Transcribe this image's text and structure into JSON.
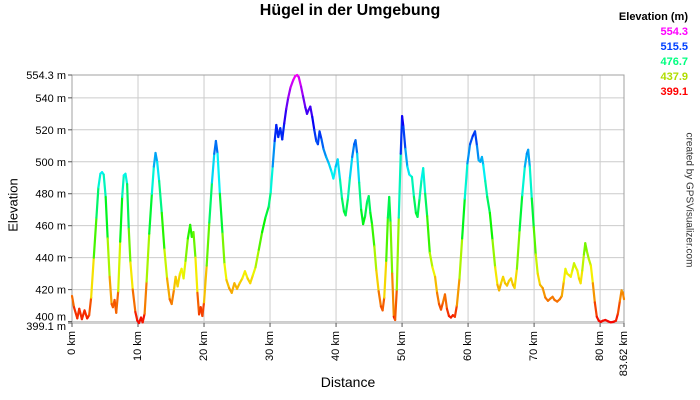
{
  "title": "Hügel in der Umgebung",
  "watermark": "created by GPSVisualizer.com",
  "legend": {
    "title": "Elevation (m)",
    "entries": [
      {
        "label": "554.3",
        "color": "#ff00ff"
      },
      {
        "label": "515.5",
        "color": "#0040ff"
      },
      {
        "label": "476.7",
        "color": "#00ff80"
      },
      {
        "label": "437.9",
        "color": "#b0dd00"
      },
      {
        "label": "399.1",
        "color": "#ff0000"
      }
    ]
  },
  "chart_data": {
    "type": "line",
    "title": "Hügel in der Umgebung",
    "xlabel": "Distance",
    "ylabel": "Elevation",
    "x_unit": "km",
    "y_unit": "m",
    "xlim": [
      0,
      83.62
    ],
    "ylim": [
      399.1,
      554.3
    ],
    "grid": true,
    "grid_color": "#cccccc",
    "border_color": "#a0a0a0",
    "tick_color": "#555555",
    "x_ticks": [
      {
        "value": 0,
        "label": "0 km"
      },
      {
        "value": 10,
        "label": "10 km"
      },
      {
        "value": 20,
        "label": "20 km"
      },
      {
        "value": 30,
        "label": "30 km"
      },
      {
        "value": 40,
        "label": "40 km"
      },
      {
        "value": 50,
        "label": "50 km"
      },
      {
        "value": 60,
        "label": "60 km"
      },
      {
        "value": 70,
        "label": "70 km"
      },
      {
        "value": 80,
        "label": "80 km"
      },
      {
        "value": 83.62,
        "label": "83.62 km"
      }
    ],
    "y_ticks": [
      {
        "value": 554.3,
        "label": "554.3 m"
      },
      {
        "value": 540,
        "label": "540 m"
      },
      {
        "value": 520,
        "label": "520 m"
      },
      {
        "value": 500,
        "label": "500 m"
      },
      {
        "value": 480,
        "label": "480 m"
      },
      {
        "value": 460,
        "label": "460 m"
      },
      {
        "value": 440,
        "label": "440 m"
      },
      {
        "value": 420,
        "label": "420 m"
      },
      {
        "value": 400,
        "label": "400 m"
      },
      {
        "value": 399.1,
        "label": "399.1 m"
      }
    ],
    "color_scale": {
      "type": "rainbow-by-elevation",
      "min_value": 399.1,
      "max_value": 554.3,
      "hue_min": 0,
      "hue_max": 300
    },
    "series": [
      {
        "name": "elevation-profile",
        "points": [
          [
            0,
            416
          ],
          [
            0.3,
            409
          ],
          [
            0.8,
            402
          ],
          [
            1.1,
            408
          ],
          [
            1.5,
            401.5
          ],
          [
            1.9,
            407
          ],
          [
            2.3,
            402
          ],
          [
            2.6,
            404
          ],
          [
            2.9,
            415
          ],
          [
            3.3,
            440
          ],
          [
            3.7,
            465
          ],
          [
            4.0,
            484
          ],
          [
            4.3,
            492.5
          ],
          [
            4.55,
            493.5
          ],
          [
            4.8,
            492
          ],
          [
            5.1,
            478
          ],
          [
            5.4,
            452
          ],
          [
            5.7,
            428
          ],
          [
            6.0,
            411
          ],
          [
            6.2,
            409
          ],
          [
            6.45,
            413.5
          ],
          [
            6.7,
            405.5
          ],
          [
            7.0,
            419
          ],
          [
            7.3,
            450
          ],
          [
            7.6,
            478
          ],
          [
            7.85,
            491.5
          ],
          [
            8.1,
            492.5
          ],
          [
            8.35,
            486
          ],
          [
            8.6,
            458
          ],
          [
            8.85,
            437
          ],
          [
            9.2,
            420
          ],
          [
            9.6,
            406
          ],
          [
            9.9,
            400.5
          ],
          [
            10.15,
            399.1
          ],
          [
            10.45,
            402.5
          ],
          [
            10.7,
            399.5
          ],
          [
            11.0,
            405
          ],
          [
            11.3,
            425
          ],
          [
            11.7,
            455
          ],
          [
            12.1,
            480
          ],
          [
            12.4,
            497
          ],
          [
            12.65,
            505.5
          ],
          [
            12.9,
            500
          ],
          [
            13.2,
            488
          ],
          [
            13.6,
            468
          ],
          [
            14.0,
            445
          ],
          [
            14.4,
            427
          ],
          [
            14.8,
            414
          ],
          [
            15.1,
            411
          ],
          [
            15.45,
            420
          ],
          [
            15.7,
            428
          ],
          [
            16.0,
            422
          ],
          [
            16.35,
            430
          ],
          [
            16.6,
            433
          ],
          [
            16.9,
            427
          ],
          [
            17.2,
            438
          ],
          [
            17.55,
            452
          ],
          [
            17.9,
            460.5
          ],
          [
            18.15,
            453
          ],
          [
            18.4,
            456
          ],
          [
            18.7,
            440
          ],
          [
            19.0,
            418
          ],
          [
            19.25,
            404.5
          ],
          [
            19.5,
            409
          ],
          [
            19.75,
            403.5
          ],
          [
            20.0,
            412
          ],
          [
            20.4,
            435
          ],
          [
            20.8,
            462
          ],
          [
            21.2,
            487
          ],
          [
            21.55,
            505
          ],
          [
            21.8,
            513
          ],
          [
            22.05,
            505
          ],
          [
            22.4,
            480
          ],
          [
            22.8,
            455
          ],
          [
            23.1,
            436
          ],
          [
            23.4,
            426
          ],
          [
            23.8,
            421
          ],
          [
            24.2,
            418
          ],
          [
            24.6,
            424
          ],
          [
            25.0,
            420.5
          ],
          [
            25.4,
            424
          ],
          [
            25.8,
            427
          ],
          [
            26.2,
            431.5
          ],
          [
            26.6,
            427
          ],
          [
            27.0,
            424
          ],
          [
            27.4,
            429
          ],
          [
            27.8,
            434
          ],
          [
            28.3,
            445
          ],
          [
            28.8,
            456
          ],
          [
            29.3,
            465
          ],
          [
            29.8,
            472
          ],
          [
            30.1,
            481
          ],
          [
            30.4,
            497
          ],
          [
            30.7,
            513
          ],
          [
            30.95,
            523
          ],
          [
            31.25,
            515.5
          ],
          [
            31.55,
            521
          ],
          [
            31.85,
            514
          ],
          [
            32.15,
            524
          ],
          [
            32.45,
            533
          ],
          [
            32.75,
            540
          ],
          [
            33.1,
            546.5
          ],
          [
            33.5,
            551
          ],
          [
            33.8,
            553.5
          ],
          [
            34.1,
            554.3
          ],
          [
            34.35,
            553
          ],
          [
            34.7,
            547
          ],
          [
            35.0,
            541
          ],
          [
            35.35,
            534
          ],
          [
            35.6,
            530
          ],
          [
            35.85,
            532.5
          ],
          [
            36.1,
            534.5
          ],
          [
            36.4,
            528
          ],
          [
            36.7,
            520
          ],
          [
            37.0,
            513
          ],
          [
            37.25,
            511
          ],
          [
            37.5,
            519
          ],
          [
            37.8,
            514
          ],
          [
            38.1,
            508
          ],
          [
            38.5,
            503
          ],
          [
            38.9,
            499
          ],
          [
            39.3,
            494
          ],
          [
            39.6,
            489.5
          ],
          [
            39.95,
            497
          ],
          [
            40.25,
            501.5
          ],
          [
            40.6,
            489
          ],
          [
            40.9,
            477
          ],
          [
            41.2,
            469
          ],
          [
            41.45,
            466.5
          ],
          [
            41.8,
            477
          ],
          [
            42.1,
            490
          ],
          [
            42.45,
            503
          ],
          [
            42.75,
            511
          ],
          [
            42.95,
            513.5
          ],
          [
            43.2,
            505
          ],
          [
            43.5,
            487
          ],
          [
            43.8,
            470
          ],
          [
            44.1,
            461
          ],
          [
            44.4,
            466
          ],
          [
            44.7,
            475
          ],
          [
            44.95,
            478.5
          ],
          [
            45.2,
            468
          ],
          [
            45.45,
            461
          ],
          [
            45.8,
            447
          ],
          [
            46.1,
            432
          ],
          [
            46.45,
            419
          ],
          [
            46.8,
            409.5
          ],
          [
            47.05,
            407
          ],
          [
            47.3,
            415
          ],
          [
            47.6,
            438
          ],
          [
            47.85,
            465
          ],
          [
            48.05,
            478
          ],
          [
            48.25,
            462
          ],
          [
            48.5,
            430
          ],
          [
            48.75,
            403
          ],
          [
            48.95,
            401
          ],
          [
            49.2,
            420
          ],
          [
            49.5,
            465
          ],
          [
            49.8,
            505
          ],
          [
            50.0,
            528.6
          ],
          [
            50.2,
            522
          ],
          [
            50.5,
            508
          ],
          [
            50.8,
            497
          ],
          [
            51.1,
            492
          ],
          [
            51.5,
            490.5
          ],
          [
            51.8,
            478
          ],
          [
            52.1,
            468
          ],
          [
            52.35,
            465.5
          ],
          [
            52.65,
            477
          ],
          [
            52.95,
            489
          ],
          [
            53.2,
            496
          ],
          [
            53.5,
            480
          ],
          [
            53.8,
            466
          ],
          [
            54.2,
            443
          ],
          [
            54.6,
            434
          ],
          [
            55.0,
            428
          ],
          [
            55.3,
            418
          ],
          [
            55.6,
            411
          ],
          [
            55.9,
            407.5
          ],
          [
            56.2,
            412
          ],
          [
            56.5,
            417
          ],
          [
            56.8,
            408
          ],
          [
            57.1,
            403.5
          ],
          [
            57.4,
            402.5
          ],
          [
            57.7,
            404
          ],
          [
            58.0,
            403
          ],
          [
            58.3,
            410
          ],
          [
            58.7,
            427
          ],
          [
            59.1,
            452
          ],
          [
            59.5,
            477
          ],
          [
            59.9,
            499
          ],
          [
            60.3,
            511
          ],
          [
            60.7,
            516
          ],
          [
            61.05,
            519
          ],
          [
            61.35,
            510
          ],
          [
            61.6,
            501
          ],
          [
            61.85,
            500
          ],
          [
            62.1,
            503
          ],
          [
            62.3,
            498
          ],
          [
            62.6,
            488
          ],
          [
            62.9,
            478
          ],
          [
            63.3,
            468
          ],
          [
            63.7,
            451
          ],
          [
            64.1,
            434
          ],
          [
            64.45,
            423
          ],
          [
            64.7,
            419.5
          ],
          [
            65.0,
            424
          ],
          [
            65.3,
            428
          ],
          [
            65.6,
            424
          ],
          [
            65.9,
            422.5
          ],
          [
            66.2,
            425.5
          ],
          [
            66.5,
            427
          ],
          [
            66.8,
            423
          ],
          [
            67.05,
            421
          ],
          [
            67.4,
            433
          ],
          [
            67.8,
            457
          ],
          [
            68.2,
            479
          ],
          [
            68.6,
            497
          ],
          [
            68.9,
            505
          ],
          [
            69.1,
            507.5
          ],
          [
            69.35,
            497
          ],
          [
            69.65,
            477
          ],
          [
            69.95,
            459
          ],
          [
            70.25,
            442
          ],
          [
            70.55,
            430
          ],
          [
            70.9,
            423
          ],
          [
            71.3,
            421
          ],
          [
            71.7,
            415
          ],
          [
            72.1,
            413
          ],
          [
            72.5,
            414.5
          ],
          [
            72.8,
            415.5
          ],
          [
            73.1,
            413.5
          ],
          [
            73.5,
            412.5
          ],
          [
            73.9,
            414
          ],
          [
            74.2,
            416
          ],
          [
            74.5,
            425
          ],
          [
            74.75,
            433
          ],
          [
            75.0,
            430
          ],
          [
            75.3,
            429
          ],
          [
            75.55,
            428
          ],
          [
            75.8,
            432
          ],
          [
            76.05,
            436.5
          ],
          [
            76.3,
            434
          ],
          [
            76.55,
            432
          ],
          [
            76.8,
            427
          ],
          [
            77.05,
            424
          ],
          [
            77.3,
            432
          ],
          [
            77.55,
            442
          ],
          [
            77.75,
            449
          ],
          [
            78.0,
            444
          ],
          [
            78.3,
            439
          ],
          [
            78.6,
            435
          ],
          [
            78.9,
            424
          ],
          [
            79.2,
            412
          ],
          [
            79.5,
            403
          ],
          [
            79.8,
            400.5
          ],
          [
            80.1,
            399.8
          ],
          [
            80.4,
            400.5
          ],
          [
            80.8,
            401
          ],
          [
            81.2,
            400.2
          ],
          [
            81.6,
            399.5
          ],
          [
            82.0,
            399.8
          ],
          [
            82.4,
            400.5
          ],
          [
            82.7,
            405
          ],
          [
            83.0,
            413
          ],
          [
            83.25,
            419.5
          ],
          [
            83.45,
            418
          ],
          [
            83.62,
            414
          ]
        ]
      }
    ]
  }
}
